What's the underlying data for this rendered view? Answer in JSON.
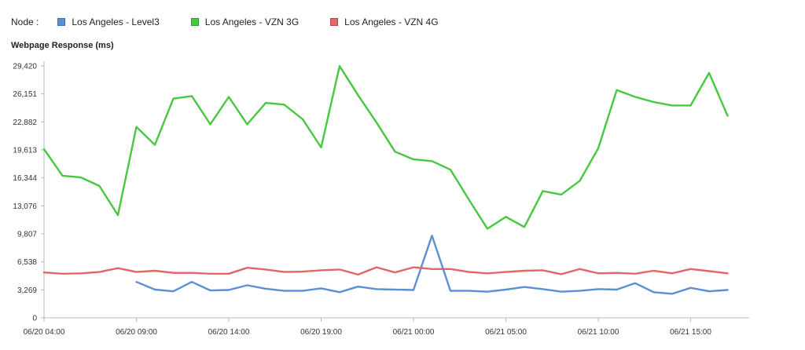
{
  "legend": {
    "node_label": "Node :",
    "items": [
      {
        "label": "Los Angeles - Level3",
        "color": "#5b8fd4"
      },
      {
        "label": "Los Angeles - VZN 3G",
        "color": "#47c83e"
      },
      {
        "label": "Los Angeles - VZN 4G",
        "color": "#e26666"
      }
    ]
  },
  "chart_data": {
    "type": "line",
    "title": "Webpage Response (ms)",
    "xlabel": "",
    "ylabel": "",
    "ylim": [
      0,
      29420
    ],
    "yticks": [
      0,
      3269,
      6538,
      9807,
      13076,
      16344,
      19613,
      22882,
      26151,
      29420
    ],
    "ytick_labels": [
      "0",
      "3,269",
      "6,538",
      "9,807",
      "13,076",
      "16,344",
      "19,613",
      "22,882",
      "26,151",
      "29,420"
    ],
    "x": [
      "06/20 04:00",
      "06/20 05:00",
      "06/20 06:00",
      "06/20 07:00",
      "06/20 08:00",
      "06/20 09:00",
      "06/20 10:00",
      "06/20 11:00",
      "06/20 12:00",
      "06/20 13:00",
      "06/20 14:00",
      "06/20 15:00",
      "06/20 16:00",
      "06/20 17:00",
      "06/20 18:00",
      "06/20 19:00",
      "06/20 20:00",
      "06/20 21:00",
      "06/20 22:00",
      "06/20 23:00",
      "06/21 00:00",
      "06/21 01:00",
      "06/21 02:00",
      "06/21 03:00",
      "06/21 04:00",
      "06/21 05:00",
      "06/21 06:00",
      "06/21 07:00",
      "06/21 08:00",
      "06/21 09:00",
      "06/21 10:00",
      "06/21 11:00",
      "06/21 12:00",
      "06/21 13:00",
      "06/21 14:00",
      "06/21 15:00",
      "06/21 16:00",
      "06/21 17:00",
      "06/21 18:00"
    ],
    "xtick_labels": [
      "06/20 04:00",
      "06/20 09:00",
      "06/20 14:00",
      "06/20 19:00",
      "06/21 00:00",
      "06/21 05:00",
      "06/21 10:00",
      "06/21 15:00"
    ],
    "xtick_index": [
      0,
      5,
      10,
      15,
      20,
      25,
      30,
      35
    ],
    "grid": false,
    "legend_position": "top",
    "series": [
      {
        "name": "Los Angeles - Level3",
        "color": "#5b8fd4",
        "values": [
          null,
          null,
          null,
          null,
          null,
          4200,
          3300,
          3100,
          4200,
          3200,
          3250,
          3800,
          3400,
          3150,
          3150,
          3450,
          3000,
          3650,
          3350,
          3300,
          3250,
          9600,
          3150,
          3150,
          3050,
          3300,
          3600,
          3350,
          3050,
          3150,
          3350,
          3300,
          4050,
          3000,
          2800,
          3500,
          3100,
          3250,
          null
        ]
      },
      {
        "name": "Los Angeles - VZN 3G",
        "color": "#47c83e",
        "values": [
          19700,
          16600,
          16400,
          15400,
          12000,
          22300,
          20200,
          25600,
          25900,
          22600,
          25800,
          22600,
          25100,
          24900,
          23200,
          19900,
          29400,
          26000,
          22800,
          19400,
          18500,
          18300,
          17300,
          13800,
          10400,
          11800,
          10600,
          14800,
          14400,
          16000,
          19800,
          26600,
          25800,
          25200,
          24800,
          24800,
          28600,
          23600,
          null
        ]
      },
      {
        "name": "Los Angeles - VZN 4G",
        "color": "#e26666",
        "values": [
          5300,
          5150,
          5200,
          5350,
          5800,
          5350,
          5500,
          5250,
          5250,
          5150,
          5150,
          5850,
          5650,
          5350,
          5400,
          5550,
          5650,
          5050,
          5900,
          5300,
          5900,
          5700,
          5700,
          5350,
          5200,
          5350,
          5500,
          5550,
          5100,
          5700,
          5200,
          5250,
          5150,
          5500,
          5200,
          5700,
          5450,
          5200,
          null
        ]
      }
    ]
  }
}
